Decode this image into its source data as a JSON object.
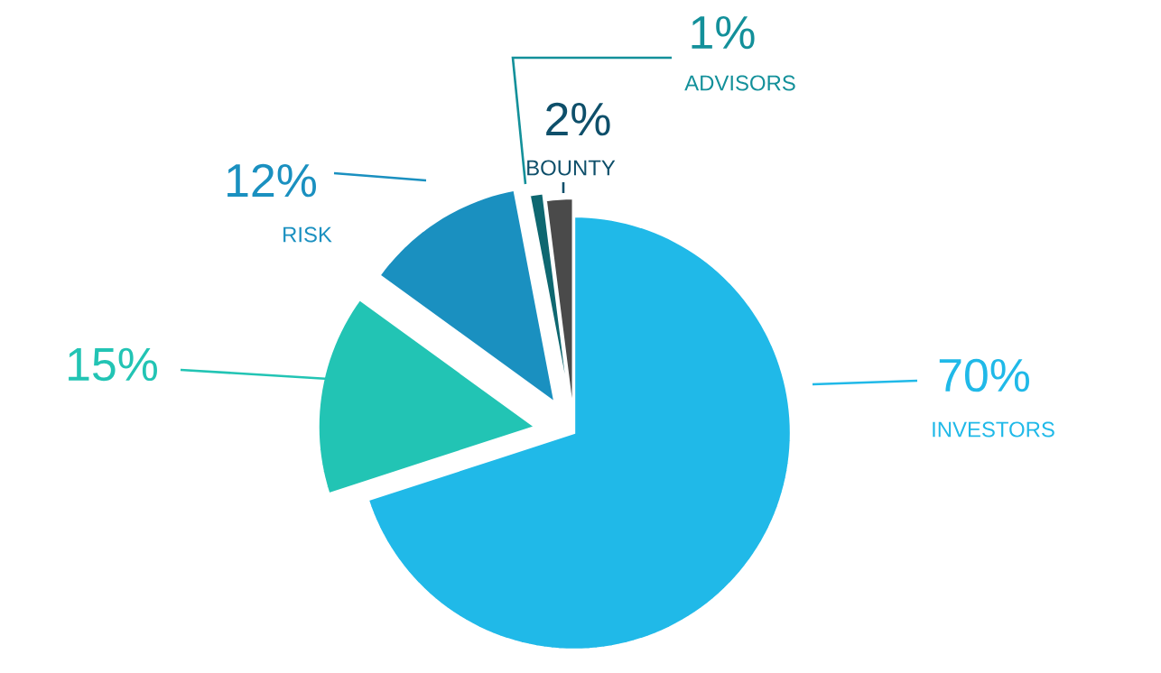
{
  "chart_data": {
    "type": "pie",
    "categories": [
      "INVESTORS",
      null,
      "RISK",
      "ADVISORS",
      "BOUNTY"
    ],
    "values": [
      70,
      15,
      12,
      1,
      2
    ],
    "value_labels": [
      "70%",
      "15%",
      "12%",
      "1%",
      "2%"
    ],
    "colors": [
      "#20b9e8",
      "#22c4b4",
      "#1a90c0",
      "#0e6770",
      "#4a4a4a"
    ]
  }
}
